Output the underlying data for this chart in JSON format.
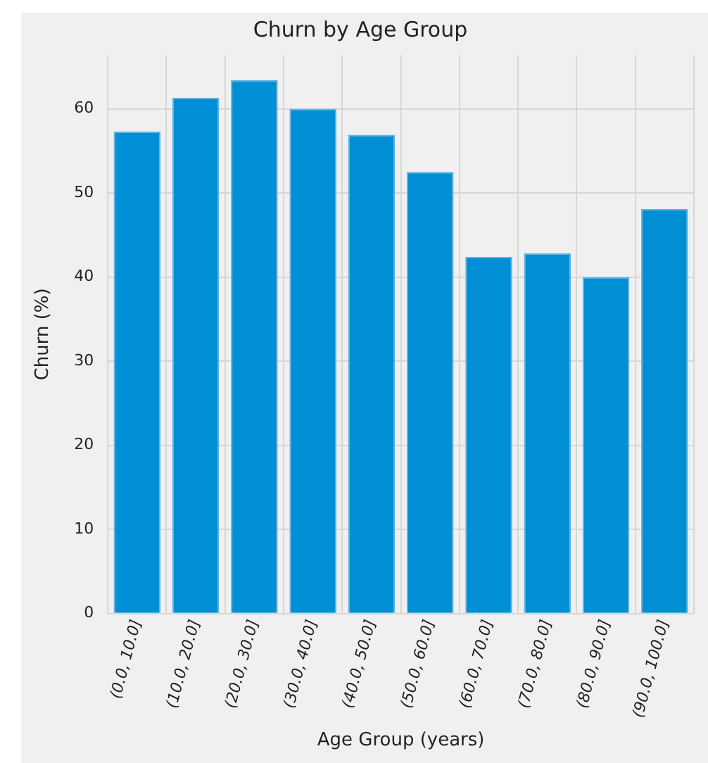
{
  "chart_data": {
    "type": "bar",
    "title": "Churn by Age Group",
    "xlabel": "Age Group (years)",
    "ylabel": "Churn (%)",
    "categories": [
      "(0.0, 10.0]",
      "(10.0, 20.0]",
      "(20.0, 30.0]",
      "(30.0, 40.0]",
      "(40.0, 50.0]",
      "(50.0, 60.0]",
      "(60.0, 70.0]",
      "(70.0, 80.0]",
      "(80.0, 90.0]",
      "(90.0, 100.0]"
    ],
    "values": [
      57.3,
      61.3,
      63.4,
      60.0,
      56.9,
      52.5,
      42.4,
      42.8,
      40.0,
      48.1
    ],
    "color": "#008fd5",
    "ylim": [
      0,
      66.4
    ],
    "yticks": [
      0,
      10,
      20,
      30,
      40,
      50,
      60
    ],
    "grid": true
  }
}
